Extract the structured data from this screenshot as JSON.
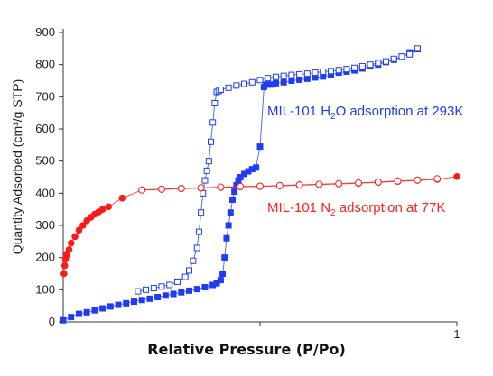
{
  "chart_data": {
    "type": "scatter",
    "xlabel": "Relative Pressure (P/Po)",
    "ylabel": "Quantity Adsorbed (cm³/g STP)",
    "ylim": [
      0,
      900
    ],
    "xlim": [
      0,
      1
    ],
    "yticks": [
      "0",
      "100",
      "200",
      "300",
      "400",
      "500",
      "600",
      "700",
      "800",
      "900"
    ],
    "xticks": [
      "1"
    ],
    "grid": false,
    "colors": {
      "n2": "#ff1a1a",
      "h2o": "#1f3cf0",
      "annotation_n2": "#ff2020",
      "annotation_h2o": "#1f3cf0"
    },
    "annotations": [
      {
        "id": "h2o",
        "prefix": "MIL-101 H",
        "sub": "2",
        "suffix": "O adsorption at 293K"
      },
      {
        "id": "n2",
        "prefix": "MIL-101 N",
        "sub": "2",
        "suffix": " adsorption at 77K"
      }
    ],
    "series": [
      {
        "id": "h2o_adsorption",
        "marker": "square-filled",
        "x": [
          0.0,
          0.02,
          0.04,
          0.06,
          0.08,
          0.1,
          0.12,
          0.14,
          0.16,
          0.18,
          0.2,
          0.22,
          0.24,
          0.26,
          0.28,
          0.3,
          0.32,
          0.34,
          0.36,
          0.38,
          0.39,
          0.4,
          0.405,
          0.41,
          0.415,
          0.42,
          0.425,
          0.43,
          0.435,
          0.44,
          0.445,
          0.45,
          0.46,
          0.47,
          0.48,
          0.49,
          0.5,
          0.51,
          0.515,
          0.52,
          0.53,
          0.54,
          0.56,
          0.58,
          0.6,
          0.62,
          0.64,
          0.66,
          0.68,
          0.7,
          0.72,
          0.74,
          0.76,
          0.78,
          0.8,
          0.82,
          0.84,
          0.86,
          0.88,
          0.9
        ],
        "y": [
          5,
          15,
          25,
          30,
          36,
          42,
          48,
          53,
          58,
          63,
          68,
          72,
          77,
          82,
          87,
          92,
          97,
          102,
          108,
          115,
          120,
          130,
          150,
          200,
          260,
          300,
          340,
          380,
          405,
          425,
          440,
          450,
          460,
          468,
          475,
          480,
          545,
          730,
          738,
          738,
          738,
          742,
          745,
          750,
          753,
          756,
          760,
          763,
          768,
          775,
          778,
          782,
          788,
          795,
          800,
          808,
          815,
          825,
          838,
          848
        ]
      },
      {
        "id": "h2o_desorption",
        "marker": "square-open",
        "x": [
          0.19,
          0.21,
          0.23,
          0.25,
          0.27,
          0.29,
          0.31,
          0.32,
          0.33,
          0.34,
          0.345,
          0.35,
          0.355,
          0.36,
          0.365,
          0.37,
          0.375,
          0.38,
          0.385,
          0.39,
          0.395,
          0.4,
          0.42,
          0.44,
          0.46,
          0.48,
          0.5,
          0.52,
          0.54,
          0.56,
          0.58,
          0.6,
          0.62,
          0.64,
          0.66,
          0.68,
          0.7,
          0.72,
          0.74,
          0.76,
          0.78,
          0.8,
          0.82,
          0.84,
          0.86,
          0.88,
          0.9
        ],
        "y": [
          95,
          100,
          105,
          110,
          115,
          125,
          140,
          160,
          190,
          230,
          280,
          340,
          400,
          440,
          470,
          500,
          560,
          620,
          680,
          715,
          718,
          722,
          728,
          735,
          740,
          745,
          752,
          758,
          762,
          765,
          768,
          770,
          772,
          775,
          778,
          780,
          783,
          786,
          790,
          795,
          800,
          805,
          810,
          818,
          825,
          832,
          850
        ]
      },
      {
        "id": "n2_adsorption",
        "marker": "circle-filled",
        "x": [
          0.002,
          0.004,
          0.006,
          0.008,
          0.01,
          0.015,
          0.02,
          0.03,
          0.04,
          0.05,
          0.06,
          0.07,
          0.08,
          0.09,
          0.1,
          0.115,
          0.15,
          0.2,
          0.25,
          0.3,
          0.35,
          0.4,
          0.45,
          0.5,
          0.55,
          0.6,
          0.65,
          0.7,
          0.75,
          0.8,
          0.85,
          0.9,
          0.95,
          1.0
        ],
        "y": [
          150,
          175,
          195,
          205,
          212,
          225,
          245,
          265,
          285,
          300,
          315,
          325,
          335,
          342,
          350,
          358,
          385,
          410,
          412,
          414,
          416,
          418,
          420,
          421,
          423,
          425,
          427,
          429,
          431,
          434,
          437,
          440,
          443,
          452
        ]
      },
      {
        "id": "n2_desorption",
        "marker": "circle-open",
        "x": [
          0.2,
          0.25,
          0.3,
          0.35,
          0.4,
          0.45,
          0.5,
          0.55,
          0.6,
          0.65,
          0.7,
          0.75,
          0.8,
          0.85,
          0.9,
          0.95
        ],
        "y": [
          410,
          413,
          415,
          417,
          419,
          421,
          422,
          424,
          426,
          428,
          430,
          432,
          435,
          438,
          441,
          445
        ]
      }
    ]
  }
}
